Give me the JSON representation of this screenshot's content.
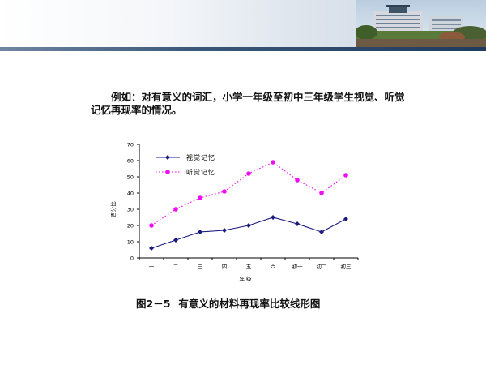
{
  "intro_text": "例如：对有意义的词汇，小学一年级至初中三年级学生视觉、听觉记忆再现率的情况。",
  "caption": {
    "number": "图2－5",
    "text": "有意义的材料再现率比较线形图"
  },
  "colors": {
    "series_visual": "#1a1a80",
    "series_auditory": "#ee10ee",
    "banner_rule": "#2b4a6f"
  },
  "chart_data": {
    "type": "line",
    "categories": [
      "一",
      "二",
      "三",
      "四",
      "五",
      "六",
      "初一",
      "初二",
      "初三"
    ],
    "series": [
      {
        "name": "视觉记忆",
        "values": [
          6,
          11,
          16,
          17,
          20,
          25,
          21,
          16,
          24
        ],
        "color": "#1a1a80",
        "line": "solid",
        "marker": "diamond"
      },
      {
        "name": "听觉记忆",
        "values": [
          20,
          30,
          37,
          41,
          52,
          59,
          48,
          40,
          51
        ],
        "color": "#ee10ee",
        "line": "dotted",
        "marker": "circle"
      }
    ],
    "title": "",
    "xlabel": "年  级",
    "ylabel": "百分比",
    "ylim": [
      0,
      70
    ],
    "yticks": [
      "0",
      "10",
      "20",
      "30",
      "40",
      "50",
      "60",
      "70"
    ],
    "legend_position": "top-left",
    "grid": false
  }
}
